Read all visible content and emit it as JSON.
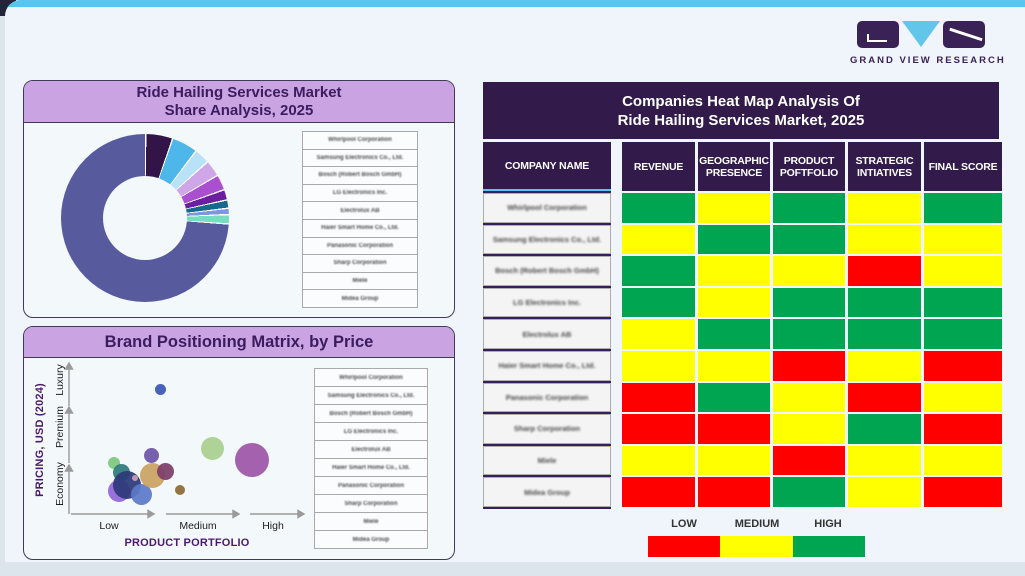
{
  "logo": {
    "text": "GRAND VIEW RESEARCH",
    "dark_color": "#3a2156",
    "accent_color": "#62c5ea"
  },
  "companies": [
    "Whirlpool Corporation",
    "Samsung Electronics Co., Ltd.",
    "Bosch (Robert Bosch GmbH)",
    "LG Electronics Inc.",
    "Electrolux AB",
    "Haier Smart Home Co., Ltd.",
    "Panasonic Corporation",
    "Sharp Corporation",
    "Miele",
    "Midea Group"
  ],
  "market_share": {
    "title_line1": "Ride Hailing Services Market",
    "title_line2": "Share Analysis, 2025"
  },
  "brand_matrix": {
    "title": "Brand Positioning Matrix, by Price",
    "y_axis_title": "PRICING, USD (2024)",
    "x_axis_title": "PRODUCT PORTFOLIO",
    "y_ticks": [
      "Economy",
      "Premium",
      "Luxury"
    ],
    "x_ticks": [
      "Low",
      "Medium",
      "High"
    ]
  },
  "heatmap": {
    "title_line1": "Companies Heat Map Analysis Of",
    "title_line2": "Ride Hailing Services Market, 2025",
    "columns": [
      "COMPANY NAME",
      "REVENUE",
      "GEOGRAPHIC PRESENCE",
      "PRODUCT POFTFOLIO",
      "STRATEGIC INTIATIVES",
      "FINAL SCORE"
    ],
    "legend": [
      {
        "label": "LOW",
        "color": "#fe0000"
      },
      {
        "label": "MEDIUM",
        "color": "#ffff00"
      },
      {
        "label": "HIGH",
        "color": "#00a551"
      }
    ]
  },
  "chart_data": [
    {
      "type": "pie",
      "donut": true,
      "title": "Ride Hailing Services Market Share Analysis, 2025",
      "labels": [
        "Whirlpool Corporation",
        "Samsung Electronics Co., Ltd.",
        "Bosch (Robert Bosch GmbH)",
        "LG Electronics Inc.",
        "Electrolux AB",
        "Haier Smart Home Co., Ltd.",
        "Panasonic Corporation",
        "Sharp Corporation",
        "Miele",
        "Midea Group"
      ],
      "values": [
        5.2,
        5.0,
        3.0,
        3.2,
        3.0,
        2.0,
        1.6,
        1.2,
        1.8,
        74.0
      ],
      "colors": [
        "#321449",
        "#4db7ea",
        "#b9e2f8",
        "#cfa7e8",
        "#ab4fd1",
        "#6b1f9e",
        "#15698a",
        "#7f95e0",
        "#74dfc0",
        "#585a9e"
      ],
      "legend_position": "right"
    },
    {
      "type": "scatter",
      "title": "Brand Positioning Matrix, by Price",
      "xlabel": "PRODUCT PORTFOLIO",
      "ylabel": "PRICING, USD (2024)",
      "x_ticks": [
        "Low",
        "Medium",
        "High"
      ],
      "y_ticks": [
        "Economy",
        "Premium",
        "Luxury"
      ],
      "points": [
        {
          "x": 90,
          "y": 136,
          "r": 6,
          "color": "#7dc87f",
          "portfolio": "low",
          "pricing": "economy"
        },
        {
          "x": 97,
          "y": 145,
          "r": 8.5,
          "color": "#2f7a7d",
          "portfolio": "low",
          "pricing": "economy"
        },
        {
          "x": 95,
          "y": 164,
          "r": 11,
          "color": "#9066d9",
          "portfolio": "low",
          "pricing": "economy"
        },
        {
          "x": 103,
          "y": 158,
          "r": 14,
          "color": "#2c3979",
          "portfolio": "low",
          "pricing": "economy"
        },
        {
          "x": 117,
          "y": 167,
          "r": 10.5,
          "color": "#5b7ac9",
          "portfolio": "low",
          "pricing": "economy"
        },
        {
          "x": 128,
          "y": 148,
          "r": 12.5,
          "color": "#c9a263",
          "portfolio": "low",
          "pricing": "economy"
        },
        {
          "x": 141,
          "y": 144,
          "r": 8.5,
          "color": "#7c3e68",
          "portfolio": "low",
          "pricing": "economy"
        },
        {
          "x": 127,
          "y": 128,
          "r": 7.5,
          "color": "#6d55a8",
          "portfolio": "low",
          "pricing": "economy"
        },
        {
          "x": 111,
          "y": 151,
          "r": 3,
          "color": "#c79fb6",
          "portfolio": "low",
          "pricing": "economy"
        },
        {
          "x": 156,
          "y": 163,
          "r": 5,
          "color": "#8a6a35",
          "portfolio": "low",
          "pricing": "economy"
        },
        {
          "x": 136,
          "y": 62,
          "r": 5.5,
          "color": "#3a55b4",
          "portfolio": "low",
          "pricing": "luxury"
        },
        {
          "x": 188,
          "y": 121,
          "r": 11.5,
          "color": "#a9cf8e",
          "portfolio": "medium",
          "pricing": "premium"
        },
        {
          "x": 228,
          "y": 133,
          "r": 17,
          "color": "#9c55a8",
          "portfolio": "medium",
          "pricing": "premium"
        }
      ]
    },
    {
      "type": "heatmap",
      "title": "Companies Heat Map Analysis Of Ride Hailing Services Market, 2025",
      "columns": [
        "COMPANY NAME",
        "REVENUE",
        "GEOGRAPHIC PRESENCE",
        "PRODUCT POFTFOLIO",
        "STRATEGIC INTIATIVES",
        "FINAL SCORE"
      ],
      "scale": {
        "low": "#fe0000",
        "medium": "#ffff00",
        "high": "#00a551"
      },
      "rows": [
        {
          "company": "Whirlpool Corporation",
          "scores": [
            "high",
            "medium",
            "high",
            "medium",
            "high"
          ]
        },
        {
          "company": "Samsung Electronics Co., Ltd.",
          "scores": [
            "medium",
            "high",
            "high",
            "medium",
            "medium"
          ]
        },
        {
          "company": "Bosch (Robert Bosch GmbH)",
          "scores": [
            "high",
            "medium",
            "medium",
            "low",
            "medium"
          ]
        },
        {
          "company": "LG Electronics Inc.",
          "scores": [
            "high",
            "medium",
            "high",
            "high",
            "high"
          ]
        },
        {
          "company": "Electrolux AB",
          "scores": [
            "medium",
            "high",
            "high",
            "high",
            "high"
          ]
        },
        {
          "company": "Haier Smart Home Co., Ltd.",
          "scores": [
            "medium",
            "medium",
            "low",
            "medium",
            "low"
          ]
        },
        {
          "company": "Panasonic Corporation",
          "scores": [
            "low",
            "high",
            "medium",
            "low",
            "medium"
          ]
        },
        {
          "company": "Sharp Corporation",
          "scores": [
            "low",
            "low",
            "medium",
            "high",
            "low"
          ]
        },
        {
          "company": "Miele",
          "scores": [
            "medium",
            "medium",
            "low",
            "medium",
            "medium"
          ]
        },
        {
          "company": "Midea Group",
          "scores": [
            "low",
            "low",
            "high",
            "medium",
            "low"
          ]
        }
      ]
    }
  ]
}
